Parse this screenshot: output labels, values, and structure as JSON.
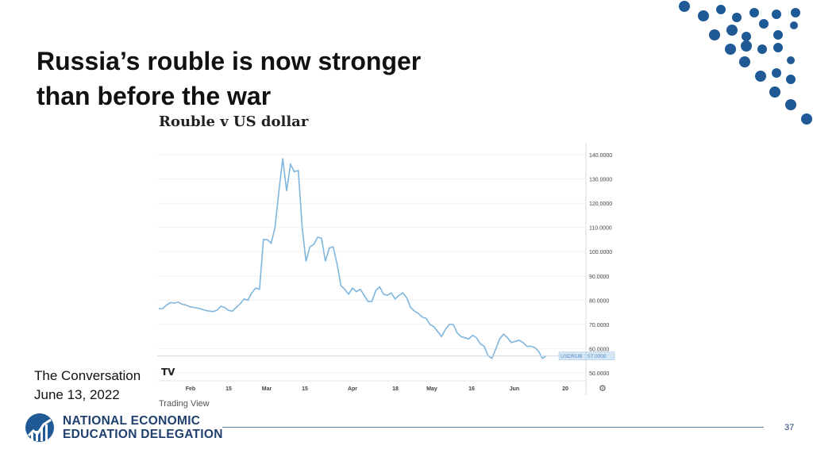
{
  "slide": {
    "title_line1": "Russia’s rouble is now stronger",
    "title_line2": "than before the war",
    "page_number": "37"
  },
  "source": {
    "line1": "The Conversation",
    "line2": "June 13, 2022"
  },
  "branding": {
    "logo_line1": "NATIONAL ECONOMIC",
    "logo_line2": "EDUCATION DELEGATION",
    "accent_color": "#1f5a96"
  },
  "chart_data": {
    "type": "line",
    "title": "Rouble v US dollar",
    "watermark": "TV",
    "footer": "Trading View",
    "ylim": [
      50,
      140
    ],
    "y_ticks": [
      "140.0000",
      "130.0000",
      "120.0000",
      "110.0000",
      "100.0000",
      "90.0000",
      "80.0000",
      "70.0000",
      "60.0000",
      "50.0000"
    ],
    "x_ticks": [
      "Feb",
      "15",
      "Mar",
      "15",
      "Apr",
      "18",
      "May",
      "16",
      "Jun",
      "20"
    ],
    "current_label": "USDRUB",
    "current_value": "57.0000",
    "line_color": "#7eb6de",
    "series": [
      {
        "name": "USDRUB",
        "values": [
          76.5,
          76.5,
          78,
          79,
          78.8,
          79.2,
          78.3,
          78,
          77.3,
          77,
          76.8,
          76.3,
          75.8,
          75.5,
          75.3,
          75.8,
          77.5,
          77,
          75.8,
          75.5,
          77,
          78.5,
          80.5,
          80,
          83,
          85,
          84.5,
          105,
          105,
          103.5,
          110,
          125,
          138.5,
          125,
          136,
          133,
          133.5,
          110,
          96,
          102,
          103,
          106,
          105.5,
          96,
          101.5,
          102,
          95,
          86,
          84.5,
          82.5,
          85,
          83.5,
          84.5,
          82,
          79.5,
          79.5,
          84,
          85.5,
          82.5,
          82,
          83,
          80.5,
          82,
          83,
          81,
          77,
          75.5,
          74.5,
          73,
          72.5,
          70,
          69,
          67,
          65,
          68,
          70,
          70,
          66.5,
          65,
          64.5,
          64,
          65.5,
          64.5,
          62,
          61,
          57,
          56,
          60,
          64,
          66,
          64.5,
          62.5,
          63,
          63.5,
          62.5,
          61,
          61,
          60.5,
          59,
          56,
          57
        ]
      }
    ]
  }
}
